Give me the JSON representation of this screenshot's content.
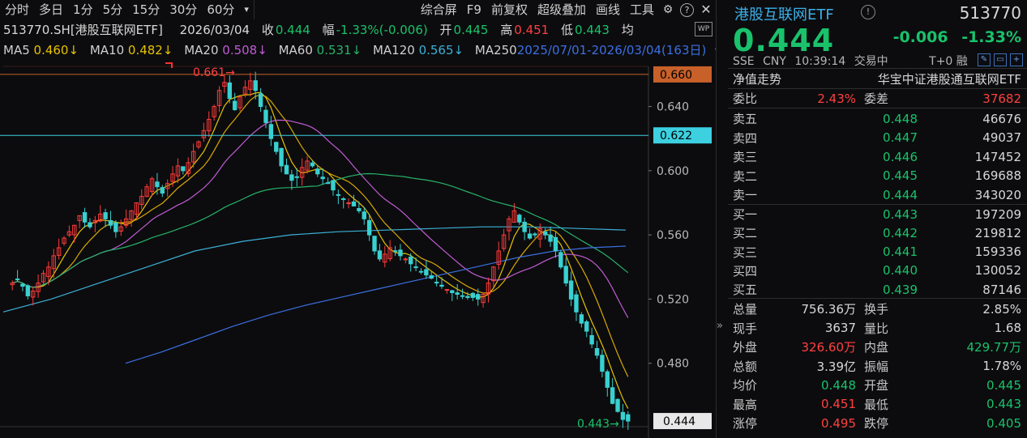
{
  "toolbar": {
    "periods": [
      "分时",
      "多日",
      "1分",
      "5分",
      "15分",
      "30分",
      "60分",
      "▾"
    ],
    "actions": [
      "综合屏",
      "F9",
      "前复权",
      "超级叠加",
      "画线",
      "工具"
    ]
  },
  "info": {
    "code_name": "513770.SH[港股互联网ETF]",
    "date": "2026/03/04",
    "close_label": "收",
    "close": "0.444",
    "range_label": "幅",
    "range": "-1.33%(-0.006)",
    "open_label": "开",
    "open": "0.445",
    "high_label": "高",
    "high": "0.451",
    "low_label": "低",
    "low": "0.443",
    "avg_label": "均"
  },
  "ma_line": {
    "items": [
      {
        "label": "MA5",
        "value": "0.460↓",
        "color": "#e6c300"
      },
      {
        "label": "MA10",
        "value": "0.482↓",
        "color": "#e6c300"
      },
      {
        "label": "MA20",
        "value": "0.508↓",
        "color": "#c05bd4"
      },
      {
        "label": "MA60",
        "value": "0.531↓",
        "color": "#27b36a"
      },
      {
        "label": "MA120",
        "value": "0.565↓",
        "color": "#3cb0d6"
      },
      {
        "label": "MA250",
        "value": "",
        "color": "#3c6fe0"
      }
    ],
    "period_range": "2025/07/01-2026/03/04(163日)"
  },
  "chart_data": {
    "type": "candlestick",
    "y_ticks": [
      "0.640",
      "0.600",
      "0.560",
      "0.520",
      "0.480"
    ],
    "ylim": [
      0.44,
      0.665
    ],
    "hlines": [
      {
        "label": "0.660",
        "value": 0.66,
        "color": "#c8602a"
      },
      {
        "label": "0.622",
        "value": 0.622,
        "color": "#3cd0e0"
      }
    ],
    "current_price_label": "0.444",
    "high_mark": "0.661",
    "low_mark": "0.443",
    "candles_close": [
      0.53,
      0.532,
      0.528,
      0.522,
      0.525,
      0.53,
      0.536,
      0.54,
      0.547,
      0.552,
      0.558,
      0.562,
      0.566,
      0.572,
      0.568,
      0.565,
      0.569,
      0.573,
      0.57,
      0.566,
      0.562,
      0.565,
      0.57,
      0.575,
      0.58,
      0.584,
      0.59,
      0.595,
      0.59,
      0.586,
      0.592,
      0.598,
      0.603,
      0.6,
      0.605,
      0.612,
      0.618,
      0.625,
      0.632,
      0.64,
      0.65,
      0.655,
      0.645,
      0.638,
      0.646,
      0.652,
      0.656,
      0.65,
      0.64,
      0.63,
      0.62,
      0.612,
      0.603,
      0.598,
      0.594,
      0.596,
      0.602,
      0.606,
      0.603,
      0.598,
      0.595,
      0.592,
      0.588,
      0.585,
      0.582,
      0.58,
      0.578,
      0.575,
      0.57,
      0.56,
      0.55,
      0.545,
      0.548,
      0.552,
      0.55,
      0.547,
      0.545,
      0.542,
      0.54,
      0.537,
      0.535,
      0.533,
      0.53,
      0.528,
      0.526,
      0.524,
      0.523,
      0.522,
      0.521,
      0.521,
      0.52,
      0.523,
      0.53,
      0.54,
      0.55,
      0.56,
      0.57,
      0.575,
      0.568,
      0.562,
      0.558,
      0.56,
      0.564,
      0.56,
      0.556,
      0.55,
      0.54,
      0.53,
      0.52,
      0.512,
      0.505,
      0.5,
      0.492,
      0.485,
      0.475,
      0.465,
      0.455,
      0.45,
      0.445,
      0.444
    ],
    "ma5": "derived",
    "series": [
      {
        "name": "MA5",
        "color": "#e6c300"
      },
      {
        "name": "MA10",
        "color": "#d8a800"
      },
      {
        "name": "MA20",
        "color": "#c05bd4"
      },
      {
        "name": "MA60",
        "color": "#27b36a"
      },
      {
        "name": "MA120",
        "color": "#3cb0d6"
      },
      {
        "name": "MA250",
        "color": "#3c6fe0"
      }
    ]
  },
  "panel": {
    "title": "港股互联网ETF",
    "code": "513770",
    "price": "0.444",
    "change": "-0.006",
    "change_pct": "-1.33%",
    "meta": [
      "SSE",
      "CNY",
      "10:39:14",
      "交易中"
    ],
    "t0": "T+0 融",
    "nav_label": "净值走势",
    "fund_name": "华宝中证港股通互联网ETF",
    "weibi_label": "委比",
    "weibi": "2.43%",
    "weicha_label": "委差",
    "weicha": "37682",
    "asks": [
      {
        "label": "卖五",
        "price": "0.448",
        "qty": "46676"
      },
      {
        "label": "卖四",
        "price": "0.447",
        "qty": "49037"
      },
      {
        "label": "卖三",
        "price": "0.446",
        "qty": "147452"
      },
      {
        "label": "卖二",
        "price": "0.445",
        "qty": "169688"
      },
      {
        "label": "卖一",
        "price": "0.444",
        "qty": "343020"
      }
    ],
    "bids": [
      {
        "label": "买一",
        "price": "0.443",
        "qty": "197209"
      },
      {
        "label": "买二",
        "price": "0.442",
        "qty": "219812"
      },
      {
        "label": "买三",
        "price": "0.441",
        "qty": "159336"
      },
      {
        "label": "买四",
        "price": "0.440",
        "qty": "130052"
      },
      {
        "label": "买五",
        "price": "0.439",
        "qty": "87146"
      }
    ],
    "stats": [
      {
        "l1": "总量",
        "v1": "756.36万",
        "c1": "#d8d8d8",
        "l2": "换手",
        "v2": "2.85%",
        "c2": "#d8d8d8"
      },
      {
        "l1": "现手",
        "v1": "3637",
        "c1": "#d8d8d8",
        "l2": "量比",
        "v2": "1.68",
        "c2": "#d8d8d8"
      },
      {
        "l1": "外盘",
        "v1": "326.60万",
        "c1": "#ff4040",
        "l2": "内盘",
        "v2": "429.77万",
        "c2": "#19c26b"
      },
      {
        "l1": "总额",
        "v1": "3.39亿",
        "c1": "#d8d8d8",
        "l2": "振幅",
        "v2": "1.78%",
        "c2": "#d8d8d8"
      },
      {
        "l1": "均价",
        "v1": "0.448",
        "c1": "#19c26b",
        "l2": "开盘",
        "v2": "0.445",
        "c2": "#19c26b"
      },
      {
        "l1": "最高",
        "v1": "0.451",
        "c1": "#ff4040",
        "l2": "最低",
        "v2": "0.443",
        "c2": "#19c26b"
      },
      {
        "l1": "涨停",
        "v1": "0.495",
        "c1": "#ff4040",
        "l2": "跌停",
        "v2": "0.405",
        "c2": "#19c26b"
      }
    ]
  }
}
